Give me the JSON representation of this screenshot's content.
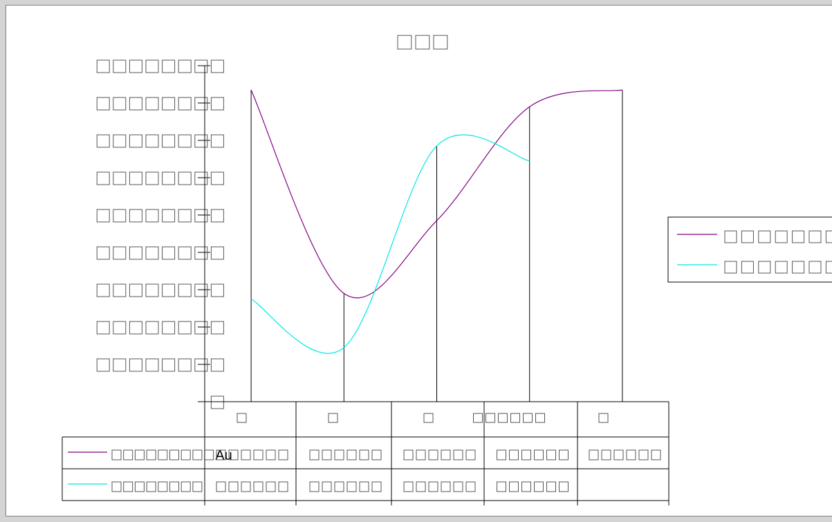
{
  "chart_data": {
    "type": "line",
    "title": "□□□",
    "categories": [
      "□",
      "□",
      "□",
      "□□□□□□",
      "□"
    ],
    "y_tick_labels": [
      "□□□□□□□□",
      "□□□□□□□□",
      "□□□□□□□□",
      "□□□□□□□□",
      "□□□□□□□□",
      "□□□□□□□□",
      "□□□□□□□□",
      "□□□□□□□□",
      "□□□□□□□□",
      "□"
    ],
    "ylim": [
      0,
      9
    ],
    "series": [
      {
        "name": "□□□□□□□",
        "color": "#800080",
        "values": [
          8.35,
          2.9,
          4.85,
          7.9,
          8.35
        ]
      },
      {
        "name": "□□□□□□□",
        "color": "#00e5e5",
        "values": [
          2.75,
          1.45,
          6.85,
          6.45,
          null
        ]
      }
    ],
    "legend_position": "right",
    "data_table": {
      "rows": [
        {
          "series_label": "□□□□□□□□□Au",
          "cells": [
            "□□□□□□",
            "□□□□□□",
            "□□□□□□",
            "□□□□□□",
            "□□□□□□"
          ]
        },
        {
          "series_label": "□□□□□□□□",
          "cells": [
            "□□□□□□",
            "□□□□□□",
            "□□□□□□",
            "□□□□□□",
            ""
          ]
        }
      ]
    }
  }
}
